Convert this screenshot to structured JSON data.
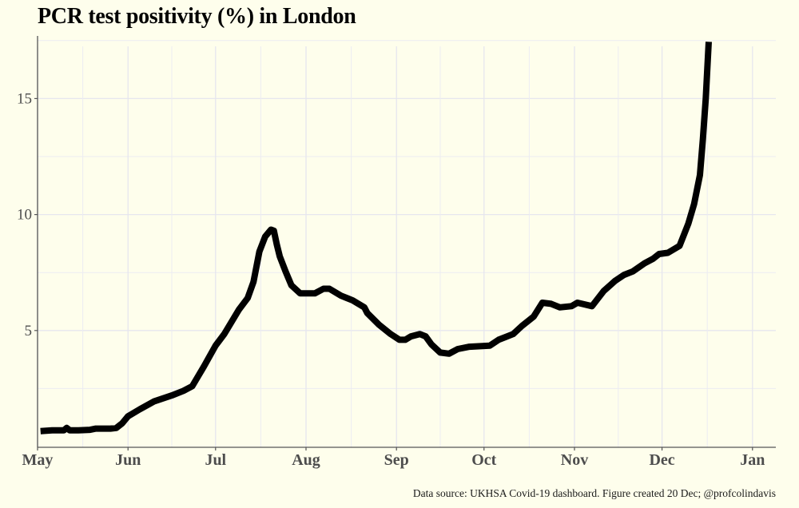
{
  "chart_data": {
    "type": "line",
    "title": "PCR test positivity (%) in London",
    "caption": "Data source: UKHSA Covid-19 dashboard. Figure created 20 Dec; @profcolindavis",
    "xlabel": "",
    "ylabel": "",
    "x_unit": "days since 1 May 2021",
    "xlim": [
      0,
      253
    ],
    "ylim": [
      0,
      17.7
    ],
    "y_ticks": [
      5,
      10,
      15
    ],
    "y_minor_ticks": [
      2.5,
      7.5,
      12.5,
      17.5
    ],
    "x_ticks": [
      {
        "label": "May",
        "day": 0
      },
      {
        "label": "Jun",
        "day": 31
      },
      {
        "label": "Jul",
        "day": 61
      },
      {
        "label": "Aug",
        "day": 92
      },
      {
        "label": "Sep",
        "day": 123
      },
      {
        "label": "Oct",
        "day": 153
      },
      {
        "label": "Nov",
        "day": 184
      },
      {
        "label": "Dec",
        "day": 214
      },
      {
        "label": "Jan",
        "day": 245
      }
    ],
    "grid": true,
    "legend": "none",
    "line_color": "#000000",
    "series": [
      {
        "name": "PCR test positivity (%)",
        "x": [
          1,
          5,
          9,
          10,
          11,
          14,
          18,
          20,
          25,
          27,
          29,
          31,
          35,
          40,
          46,
          50,
          53,
          57,
          61,
          64,
          69,
          72,
          74,
          76,
          78,
          80,
          81,
          82,
          83,
          85,
          87,
          90,
          91,
          95,
          98,
          100,
          104,
          106,
          108,
          112,
          113,
          117,
          121,
          124,
          126,
          128,
          131,
          133,
          135,
          138,
          141,
          144,
          148,
          155,
          158,
          163,
          166,
          170,
          173,
          176,
          179,
          183,
          185,
          190,
          194,
          198,
          201,
          204,
          208,
          211,
          213,
          216,
          220,
          223,
          225,
          227,
          228,
          229,
          230
        ],
        "values": [
          0.66,
          0.7,
          0.7,
          0.8,
          0.7,
          0.7,
          0.72,
          0.77,
          0.77,
          0.8,
          1.0,
          1.3,
          1.6,
          1.95,
          2.2,
          2.4,
          2.6,
          3.45,
          4.35,
          4.85,
          5.9,
          6.4,
          7.1,
          8.4,
          9.05,
          9.35,
          9.3,
          8.7,
          8.2,
          7.55,
          6.95,
          6.6,
          6.6,
          6.6,
          6.8,
          6.8,
          6.5,
          6.4,
          6.3,
          6.0,
          5.75,
          5.25,
          4.85,
          4.6,
          4.6,
          4.75,
          4.85,
          4.75,
          4.4,
          4.05,
          4.0,
          4.2,
          4.3,
          4.35,
          4.6,
          4.85,
          5.2,
          5.6,
          6.2,
          6.15,
          6.0,
          6.05,
          6.2,
          6.05,
          6.7,
          7.15,
          7.4,
          7.55,
          7.9,
          8.1,
          8.3,
          8.35,
          8.65,
          9.6,
          10.45,
          11.7,
          13.25,
          15.0,
          17.45
        ]
      }
    ]
  }
}
